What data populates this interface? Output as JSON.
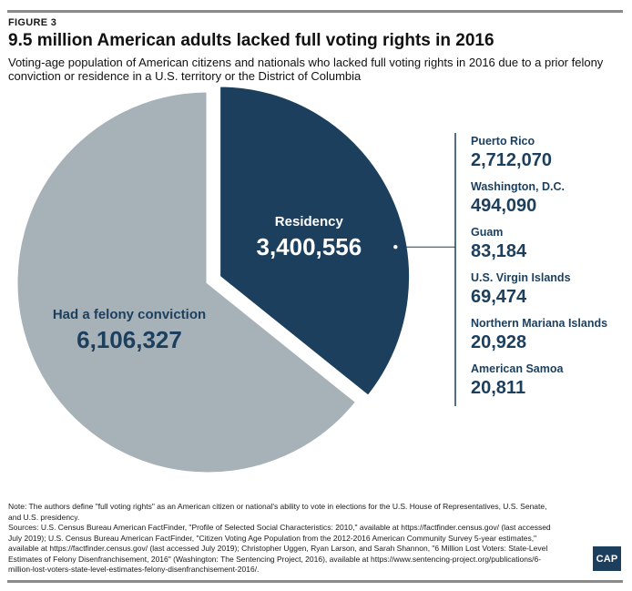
{
  "figure_label": "FIGURE 3",
  "title": "9.5 million American adults lacked full voting rights in 2016",
  "subtitle": "Voting-age population of American citizens and nationals who lacked full voting rights in 2016 due to a prior felony conviction or residence in a U.S. territory or the District of Columbia",
  "chart_data": {
    "type": "pie",
    "title": "9.5 million American adults lacked full voting rights in 2016",
    "slices": [
      {
        "label": "Residency",
        "value": 3400556,
        "value_label": "3,400,556",
        "color": "#1c3f5e",
        "exploded": true
      },
      {
        "label": "Had a felony conviction",
        "value": 6106327,
        "value_label": "6,106,327",
        "color": "#a7b1b8",
        "exploded": false
      }
    ],
    "breakdown": {
      "of": "Residency",
      "items": [
        {
          "label": "Puerto Rico",
          "value": 2712070,
          "value_label": "2,712,070"
        },
        {
          "label": "Washington, D.C.",
          "value": 494090,
          "value_label": "494,090"
        },
        {
          "label": "Guam",
          "value": 83184,
          "value_label": "83,184"
        },
        {
          "label": "U.S. Virgin Islands",
          "value": 69474,
          "value_label": "69,474"
        },
        {
          "label": "Northern Mariana Islands",
          "value": 20928,
          "value_label": "20,928"
        },
        {
          "label": "American Samoa",
          "value": 20811,
          "value_label": "20,811"
        }
      ]
    }
  },
  "colors": {
    "residency": "#1c3f5e",
    "felony": "#a7b1b8",
    "accent_text": "#1c3f5e",
    "rule": "#8a8a8a"
  },
  "notes": {
    "note": "Note: The authors define \"full voting rights\" as an American citizen or national's ability to vote in elections for the U.S. House of Representatives, U.S. Senate, and U.S. presidency.",
    "sources": "Sources: U.S. Census Bureau American FactFinder, \"Profile of Selected Social Characteristics: 2010,\" available at https://factfinder.census.gov/ (last accessed July 2019); U.S. Census Bureau American FactFinder, \"Citizen Voting Age Population from the 2012-2016 American Community Survey 5-year estimates,\" available at https://factfinder.census.gov/ (last accessed July 2019); Christopher Uggen, Ryan Larson, and Sarah Shannon, \"6 Million Lost Voters: State-Level Estimates of Felony Disenfranchisement, 2016\" (Washington: The Sentencing Project, 2016), available at https://www.sentencing-project.org/publications/6-million-lost-voters-state-level-estimates-felony-disenfranchisement-2016/."
  },
  "logo": "CAP"
}
